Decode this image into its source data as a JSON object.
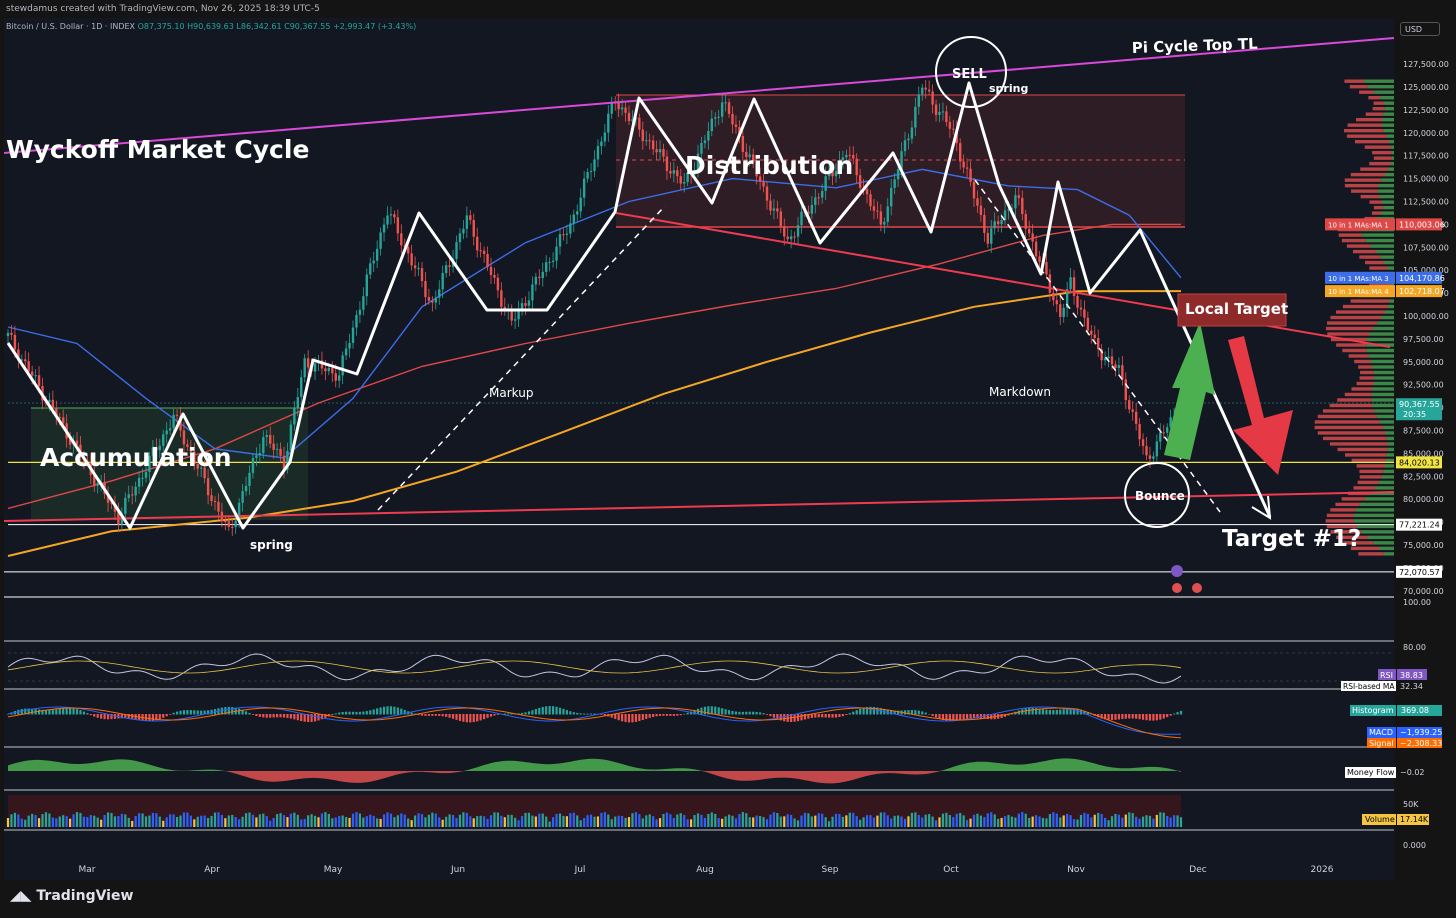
{
  "header": {
    "credit": "stewdamus created with TradingView.com, Nov 26, 2025 18:39 UTC-5",
    "symbol": "Bitcoin / U.S. Dollar · 1D · INDEX",
    "open": "O87,375.10",
    "high": "H90,639.63",
    "low": "L86,342.61",
    "close": "C90,367.55",
    "change": "+2,993.47 (+3.43%)",
    "currency": "USD"
  },
  "footer": {
    "brand": "TradingView"
  },
  "annotations": {
    "title": "Wyckoff Market Cycle",
    "pi_cycle": "Pi Cycle Top TL",
    "sell": "SELL",
    "spring_top": "spring",
    "spring_bottom": "spring",
    "distribution": "Distribution",
    "accumulation": "Accumulation",
    "markup": "Markup",
    "markdown": "Markdown",
    "bounce": "Bounce",
    "local_target": "Local Target",
    "target1": "Target #1?"
  },
  "colors": {
    "up": "#26a69a",
    "down": "#ef5350",
    "ma_blue": "#3b6ee8",
    "ma_red": "#e04848",
    "ma_orange": "#f5a623",
    "pi_line": "#d94ad9",
    "yellow_line": "#f0e442",
    "green_arrow": "#4caf50",
    "red_arrow": "#e53946"
  },
  "chart_data": {
    "type": "candlestick",
    "x_ticks": [
      "Mar",
      "Apr",
      "May",
      "Jun",
      "Jul",
      "Aug",
      "Sep",
      "Oct",
      "Nov",
      "Dec",
      "2026"
    ],
    "price_ticks": [
      "127,500.00",
      "125,000.00",
      "122,500.00",
      "120,000.00",
      "117,500.00",
      "115,000.00",
      "112,500.00",
      "110,000.00",
      "107,500.00",
      "105,000.00",
      "102,500.00",
      "100,000.00",
      "97,500.00",
      "95,000.00",
      "92,500.00",
      "90,000.00",
      "87,500.00",
      "85,000.00",
      "82,500.00",
      "80,000.00",
      "77,500.00",
      "75,000.00",
      "72,500.00",
      "70,000.00"
    ],
    "ylim": [
      69000,
      130000
    ],
    "price_labels": [
      {
        "text": "10 in 1 MAs:MA 1",
        "value": "110,003.06",
        "price": 110003,
        "color": "#e04848"
      },
      {
        "text": "10 in 1 MAs:MA 3",
        "value": "104,170.86",
        "price": 104171,
        "color": "#3b6ee8"
      },
      {
        "text": "10 in 1 MAs:MA 4",
        "value": "102,718.07",
        "price": 102718,
        "color": "#f5a623"
      },
      {
        "text": "",
        "value": "90,367.55",
        "sub": "20:35",
        "price": 90367,
        "color": "#26a69a"
      },
      {
        "text": "",
        "value": "84,020.13",
        "price": 84020,
        "color": "#f0e442"
      },
      {
        "text": "",
        "value": "77,221.24",
        "price": 77221,
        "color": "#ffffff"
      },
      {
        "text": "",
        "value": "72,070.57",
        "price": 72070,
        "color": "#ffffff"
      }
    ],
    "pivots": [
      {
        "d": 0,
        "p": 97800
      },
      {
        "d": 32,
        "p": 78000
      },
      {
        "d": 48,
        "p": 89000
      },
      {
        "d": 64,
        "p": 76300
      },
      {
        "d": 74,
        "p": 87000
      },
      {
        "d": 80,
        "p": 84000
      },
      {
        "d": 86,
        "p": 95000
      },
      {
        "d": 96,
        "p": 93600
      },
      {
        "d": 110,
        "p": 111500
      },
      {
        "d": 123,
        "p": 101200
      },
      {
        "d": 133,
        "p": 110700
      },
      {
        "d": 146,
        "p": 99200
      },
      {
        "d": 163,
        "p": 110000
      },
      {
        "d": 176,
        "p": 123600
      },
      {
        "d": 196,
        "p": 114200
      },
      {
        "d": 207,
        "p": 123500
      },
      {
        "d": 226,
        "p": 108200
      },
      {
        "d": 243,
        "p": 118000
      },
      {
        "d": 253,
        "p": 109800
      },
      {
        "d": 265,
        "p": 125100
      },
      {
        "d": 274,
        "p": 120000
      },
      {
        "d": 284,
        "p": 108500
      },
      {
        "d": 292,
        "p": 113000
      },
      {
        "d": 305,
        "p": 100100
      },
      {
        "d": 308,
        "p": 103500
      },
      {
        "d": 315,
        "p": 96800
      },
      {
        "d": 322,
        "p": 94000
      },
      {
        "d": 330,
        "p": 84300
      },
      {
        "d": 337,
        "p": 88500
      },
      {
        "d": 340,
        "p": 90367
      }
    ],
    "ma1": [
      [
        0,
        79000
      ],
      [
        30,
        82000
      ],
      [
        60,
        85500
      ],
      [
        90,
        90500
      ],
      [
        120,
        94500
      ],
      [
        150,
        97000
      ],
      [
        180,
        99200
      ],
      [
        210,
        101200
      ],
      [
        240,
        103000
      ],
      [
        270,
        105700
      ],
      [
        300,
        108800
      ],
      [
        320,
        110000
      ],
      [
        340,
        110003
      ]
    ],
    "ma3": [
      [
        0,
        98800
      ],
      [
        20,
        97000
      ],
      [
        40,
        91000
      ],
      [
        60,
        85500
      ],
      [
        80,
        84500
      ],
      [
        100,
        91000
      ],
      [
        120,
        101000
      ],
      [
        150,
        108000
      ],
      [
        180,
        112500
      ],
      [
        210,
        115000
      ],
      [
        240,
        114000
      ],
      [
        265,
        116000
      ],
      [
        290,
        114200
      ],
      [
        310,
        113800
      ],
      [
        325,
        111000
      ],
      [
        340,
        104171
      ]
    ],
    "ma4": [
      [
        0,
        73800
      ],
      [
        30,
        76500
      ],
      [
        70,
        78000
      ],
      [
        100,
        79800
      ],
      [
        130,
        83000
      ],
      [
        160,
        87200
      ],
      [
        190,
        91500
      ],
      [
        220,
        95000
      ],
      [
        250,
        98200
      ],
      [
        280,
        101000
      ],
      [
        310,
        102700
      ],
      [
        340,
        102718
      ]
    ],
    "rsi": {
      "label": "RSI",
      "value": "38.83",
      "ma_label": "RSI-based MA",
      "ma_value": "32.34",
      "ticks": [
        "100.00",
        "80.00"
      ]
    },
    "macd": {
      "hist_label": "Histogram",
      "hist_value": "369.08",
      "macd_label": "MACD",
      "macd_value": "−1,939.25",
      "signal_label": "Signal",
      "signal_value": "−2,308.33"
    },
    "money_flow": {
      "label": "Money Flow",
      "value": "−0.02"
    },
    "volume": {
      "label": "Volume",
      "value": "17.14K",
      "tick": "50K",
      "zero": "0.000"
    }
  }
}
